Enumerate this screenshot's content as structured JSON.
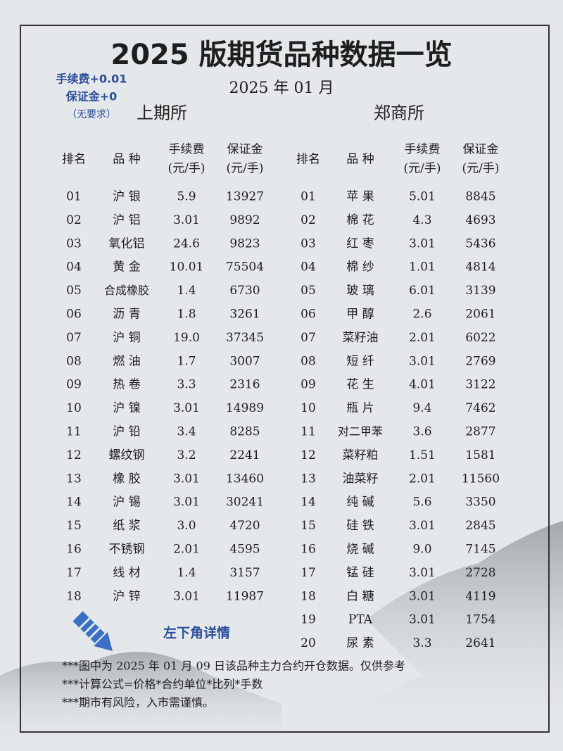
{
  "title": "2025 版期货品种数据一览",
  "subtitle": "2025 年 01 月",
  "side_note": [
    "手续费+0.01",
    "保证金+0",
    "（无要求）"
  ],
  "tables": [
    {
      "exchange": "上期所",
      "headers": [
        [
          "排名"
        ],
        [
          "品 种"
        ],
        [
          "手续费",
          "(元/手)"
        ],
        [
          "保证金",
          "(元/手)"
        ]
      ],
      "rows": [
        [
          "01",
          "沪 银",
          "5.9",
          "13927"
        ],
        [
          "02",
          "沪 铝",
          "3.01",
          "9892"
        ],
        [
          "03",
          "氧化铝",
          "24.6",
          "9823"
        ],
        [
          "04",
          "黄 金",
          "10.01",
          "75504"
        ],
        [
          "05",
          "合成橡胶",
          "1.4",
          "6730"
        ],
        [
          "06",
          "沥 青",
          "1.8",
          "3261"
        ],
        [
          "07",
          "沪 铜",
          "19.0",
          "37345"
        ],
        [
          "08",
          "燃 油",
          "1.7",
          "3007"
        ],
        [
          "09",
          "热 卷",
          "3.3",
          "2316"
        ],
        [
          "10",
          "沪 镍",
          "3.01",
          "14989"
        ],
        [
          "11",
          "沪 铅",
          "3.4",
          "8285"
        ],
        [
          "12",
          "螺纹钢",
          "3.2",
          "2241"
        ],
        [
          "13",
          "橡 胶",
          "3.01",
          "13460"
        ],
        [
          "14",
          "沪 锡",
          "3.01",
          "30241"
        ],
        [
          "15",
          "纸 浆",
          "3.0",
          "4720"
        ],
        [
          "16",
          "不锈钢",
          "2.01",
          "4595"
        ],
        [
          "17",
          "线 材",
          "1.4",
          "3157"
        ],
        [
          "18",
          "沪 锌",
          "3.01",
          "11987"
        ]
      ]
    },
    {
      "exchange": "郑商所",
      "headers": [
        [
          "排名"
        ],
        [
          "品 种"
        ],
        [
          "手续费",
          "(元/手)"
        ],
        [
          "保证金",
          "(元/手)"
        ]
      ],
      "rows": [
        [
          "01",
          "苹 果",
          "5.01",
          "8845"
        ],
        [
          "02",
          "棉 花",
          "4.3",
          "4693"
        ],
        [
          "03",
          "红 枣",
          "3.01",
          "5436"
        ],
        [
          "04",
          "棉 纱",
          "1.01",
          "4814"
        ],
        [
          "05",
          "玻 璃",
          "6.01",
          "3139"
        ],
        [
          "06",
          "甲 醇",
          "2.6",
          "2061"
        ],
        [
          "07",
          "菜籽油",
          "2.01",
          "6022"
        ],
        [
          "08",
          "短 纤",
          "3.01",
          "2769"
        ],
        [
          "09",
          "花 生",
          "4.01",
          "3122"
        ],
        [
          "10",
          "瓶 片",
          "9.4",
          "7462"
        ],
        [
          "11",
          "对二甲苯",
          "3.6",
          "2877"
        ],
        [
          "12",
          "菜籽粕",
          "1.51",
          "1581"
        ],
        [
          "13",
          "油菜籽",
          "2.01",
          "11560"
        ],
        [
          "14",
          "纯 碱",
          "5.6",
          "3350"
        ],
        [
          "15",
          "硅 铁",
          "3.01",
          "2845"
        ],
        [
          "16",
          "烧 碱",
          "9.0",
          "7145"
        ],
        [
          "17",
          "锰 硅",
          "3.01",
          "2728"
        ],
        [
          "18",
          "白 糖",
          "3.01",
          "4119"
        ],
        [
          "19",
          "PTA",
          "3.01",
          "1754"
        ],
        [
          "20",
          "尿 素",
          "3.3",
          "2641"
        ]
      ]
    }
  ],
  "arrow_note": "左下角详情",
  "footnotes": [
    "***图中为 2025 年 01 月 09 日该品种主力合约开仓数据。仅供参考",
    "***计算公式=价格*合约单位*比列*手数",
    "***期市有风险，入市需谨慎。"
  ]
}
